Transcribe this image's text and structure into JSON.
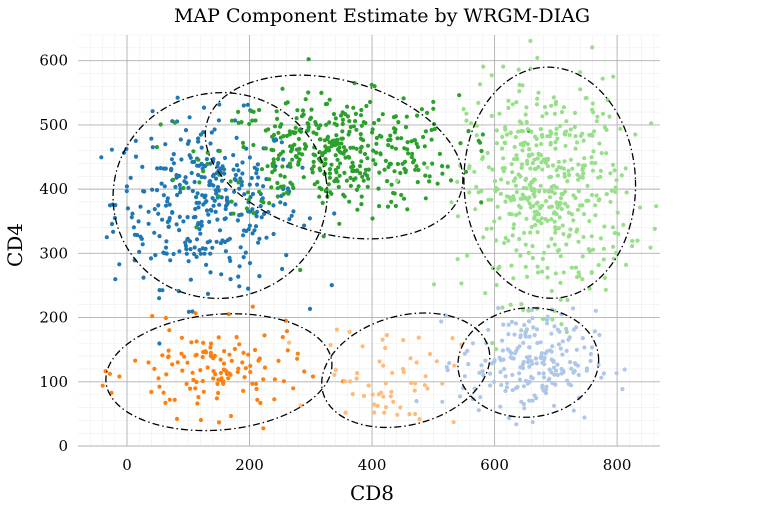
{
  "chart_data": {
    "type": "scatter",
    "title": "MAP Component Estimate by WRGM-DIAG",
    "xlabel": "CD8",
    "ylabel": "CD4",
    "xlim": [
      -80,
      870
    ],
    "ylim": [
      0,
      640
    ],
    "xticks": [
      0,
      200,
      400,
      600,
      800
    ],
    "yticks": [
      0,
      100,
      200,
      300,
      400,
      500,
      600
    ],
    "grid": true,
    "legend": "none",
    "clusters": [
      {
        "color": "#1f77b4",
        "count": 360,
        "center": [
          130,
          380
        ],
        "spread": [
          75,
          65
        ],
        "ellipse": {
          "cx": 152,
          "cy": 390,
          "rx": 175,
          "ry": 160,
          "angle": 10
        }
      },
      {
        "color": "#2ca02c",
        "count": 420,
        "center": [
          340,
          455
        ],
        "spread": [
          100,
          45
        ],
        "ellipse": {
          "cx": 338,
          "cy": 450,
          "rx": 215,
          "ry": 120,
          "angle": -15
        }
      },
      {
        "color": "#98df8a",
        "count": 480,
        "center": [
          685,
          400
        ],
        "spread": [
          65,
          85
        ],
        "ellipse": {
          "cx": 690,
          "cy": 410,
          "rx": 140,
          "ry": 180,
          "angle": 2
        }
      },
      {
        "color": "#ff7f0e",
        "count": 130,
        "center": [
          145,
          115
        ],
        "spread": [
          70,
          35
        ],
        "ellipse": {
          "cx": 150,
          "cy": 115,
          "rx": 185,
          "ry": 90,
          "angle": 5
        }
      },
      {
        "color": "#ffbb78",
        "count": 60,
        "center": [
          430,
          110
        ],
        "spread": [
          55,
          40
        ],
        "ellipse": {
          "cx": 455,
          "cy": 118,
          "rx": 140,
          "ry": 85,
          "angle": 15
        }
      },
      {
        "color": "#aec7e8",
        "count": 210,
        "center": [
          655,
          130
        ],
        "spread": [
          55,
          40
        ],
        "ellipse": {
          "cx": 655,
          "cy": 130,
          "rx": 115,
          "ry": 85,
          "angle": 5
        }
      }
    ]
  }
}
